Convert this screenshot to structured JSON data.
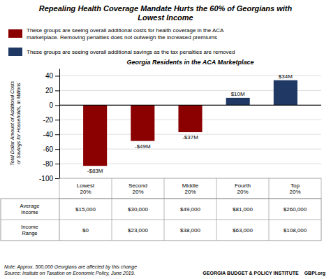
{
  "chart_data": {
    "type": "bar",
    "title": "Repealing Health Coverage Mandate Hurts the 60% of Georgians with\nLowest Income",
    "subtitle": "Georgia Residents in the ACA Marketplace",
    "y_label": "Total Dollar Amount of Additional Costs\nor Savings for Households, in Millions",
    "categories": [
      "Lowest\n20%",
      "Second\n20%",
      "Middle\n20%",
      "Fourth\n20%",
      "Top\n20%"
    ],
    "values": [
      -83,
      -49,
      -37,
      10,
      34
    ],
    "value_labels": [
      "-$83M",
      "-$49M",
      "-$37M",
      "$10M",
      "$34M"
    ],
    "data_labels": true,
    "colors": [
      "#8B0000",
      "#8B0000",
      "#8B0000",
      "#1F3864",
      "#1F3864"
    ],
    "ylim": [
      -100,
      50
    ],
    "yticks": [
      -100,
      -80,
      -60,
      -40,
      -20,
      0,
      20,
      40
    ],
    "grid": true,
    "legend_items": [
      {
        "label": "These groups are seeing overall additional costs for health coverage in the ACA\nmarketplace. Removing penalties does not outweigh the increased premiums",
        "color": "#8B0000"
      },
      {
        "label": "These groups are seeing overall additional savings as the tax penalties are removed",
        "color": "#1F3864"
      }
    ],
    "table": {
      "rows": [
        {
          "label": "Average\nIncome",
          "values": [
            "$15,000",
            "$30,000",
            "$49,000",
            "$81,000",
            "$260,000"
          ]
        },
        {
          "label": "Income\nRange",
          "values": [
            "$0",
            "$23,000",
            "$38,000",
            "$63,000",
            "$108,000"
          ]
        }
      ]
    },
    "note": "Note: Approx. 500,000 Georgians are affected by this change\nSource: Insitute on Taxation on Economic Policy, June 2019.",
    "footer": [
      "GEORGIA BUDGET & POLICY INSTITUTE",
      "GBPI.org"
    ]
  }
}
